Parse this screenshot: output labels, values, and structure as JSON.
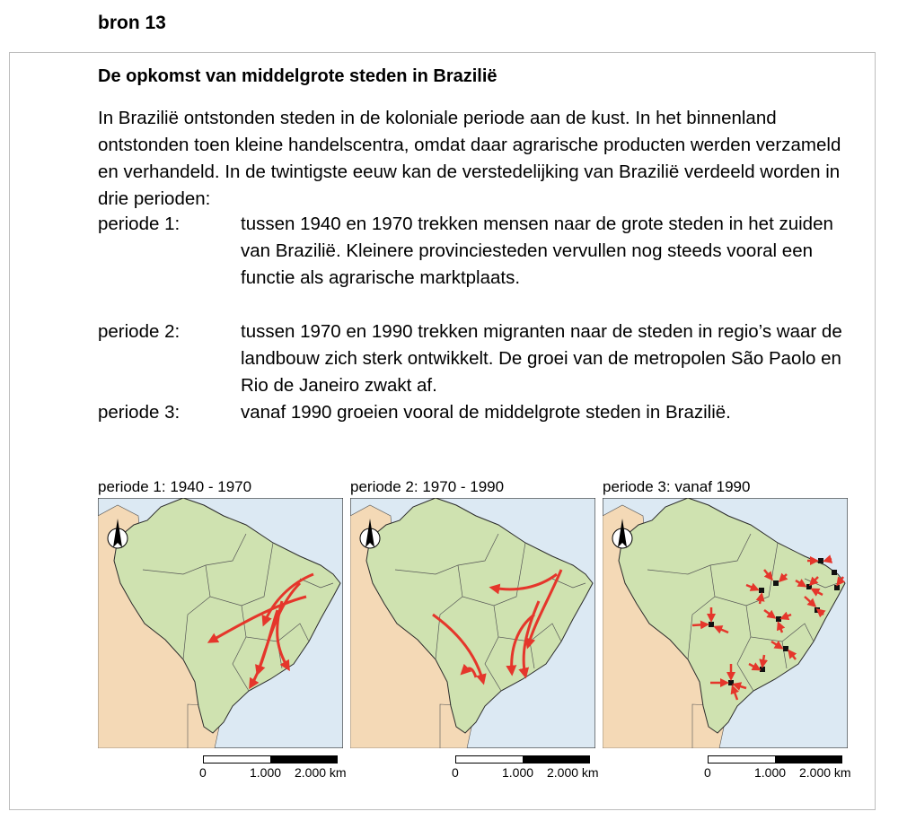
{
  "source_label": "bron 13",
  "title": "De opkomst van middelgrote steden in Brazilië",
  "intro": "In Brazilië ontstonden steden in de koloniale periode aan de kust. In het binnenland ontstonden toen kleine handelscentra, omdat daar agrarische producten werden verzameld en verhandeld. In de twintigste eeuw kan de verstedelijking van Brazilië verdeeld worden in drie perioden:",
  "periods": [
    {
      "label": "periode 1:",
      "text": "tussen 1940 en 1970 trekken mensen naar de grote steden in het zuiden van Brazilië. Kleinere provinciesteden vervullen nog steeds vooral een functie als agrarische marktplaats."
    },
    {
      "label": "periode 2:",
      "text": "tussen 1970 en 1990 trekken migranten naar de steden in regio’s waar de landbouw zich sterk ontwikkelt. De groei van de metropolen São Paolo en Rio de Janeiro zwakt af."
    },
    {
      "label": "periode 3:",
      "text": "vanaf 1990 groeien vooral de middelgrote steden in Brazilië."
    }
  ],
  "maps": [
    {
      "caption": "periode 1: 1940 - 1970"
    },
    {
      "caption": "periode 2: 1970 - 1990"
    },
    {
      "caption": "periode 3: vanaf 1990"
    }
  ],
  "scale": {
    "zero": "0",
    "mid": "1.000",
    "end": "2.000 km"
  },
  "colors": {
    "ocean": "#dce9f3",
    "brazil": "#cfe2b0",
    "neighbors": "#f4d9b6",
    "arrow": "#e5362b",
    "border": "#2b2b2b",
    "frame": "#bdbdbd"
  },
  "icons": {
    "north_arrow": "north-arrow-icon",
    "city": "city-marker-icon"
  }
}
